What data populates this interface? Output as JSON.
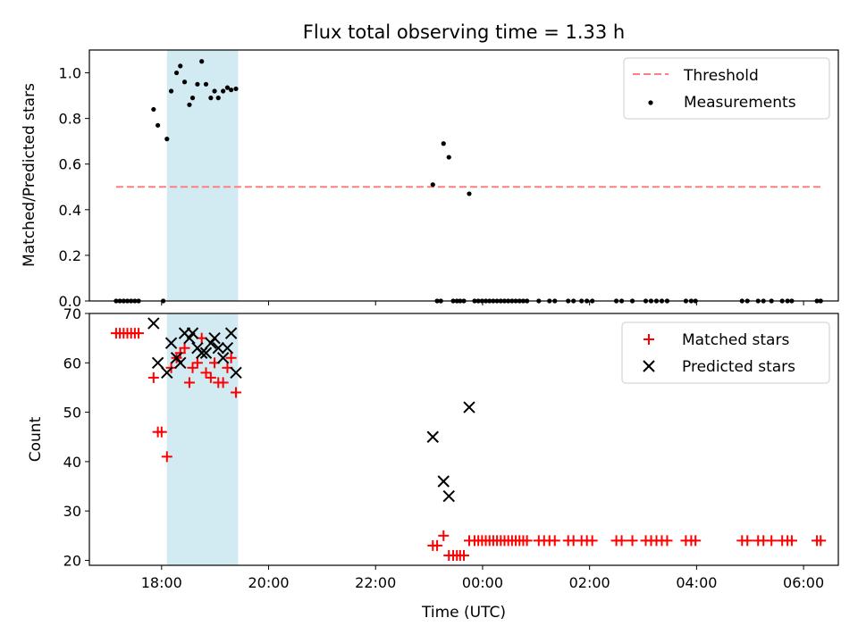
{
  "chart_data": {
    "title": "Flux total observing time = 1.33 h",
    "xlabel": "Time (UTC)",
    "x_unit": "hours since 17:00 UTC",
    "xlim": [
      -0.35,
      13.65
    ],
    "x_ticks": [
      {
        "value": 1,
        "label": "18:00"
      },
      {
        "value": 3,
        "label": "20:00"
      },
      {
        "value": 5,
        "label": "22:00"
      },
      {
        "value": 7,
        "label": "00:00"
      },
      {
        "value": 9,
        "label": "02:00"
      },
      {
        "value": 11,
        "label": "04:00"
      },
      {
        "value": 13,
        "label": "06:00"
      }
    ],
    "highlight_span": [
      1.1,
      2.43
    ],
    "highlight_color": "#add8e6",
    "panels": [
      {
        "id": "ratio",
        "type": "scatter",
        "ylabel": "Matched/Predicted stars",
        "ylim": [
          0,
          1.1
        ],
        "y_ticks": [
          0.0,
          0.2,
          0.4,
          0.6,
          0.8,
          1.0
        ],
        "threshold": {
          "name": "Threshold",
          "value": 0.5,
          "x_range": [
            0.15,
            13.35
          ],
          "color": "#ff7f7f"
        },
        "legend": [
          "Threshold",
          "Measurements"
        ],
        "series": [
          {
            "name": "Measurements",
            "color": "#000000",
            "points": [
              [
                0.15,
                0
              ],
              [
                0.22,
                0
              ],
              [
                0.29,
                0
              ],
              [
                0.36,
                0
              ],
              [
                0.43,
                0
              ],
              [
                0.5,
                0
              ],
              [
                0.57,
                0
              ],
              [
                1.03,
                0
              ],
              [
                0.85,
                0.84
              ],
              [
                0.93,
                0.77
              ],
              [
                1.1,
                0.71
              ],
              [
                1.18,
                0.92
              ],
              [
                1.28,
                1.0
              ],
              [
                1.35,
                1.03
              ],
              [
                1.43,
                0.96
              ],
              [
                1.52,
                0.86
              ],
              [
                1.58,
                0.89
              ],
              [
                1.67,
                0.95
              ],
              [
                1.75,
                1.05
              ],
              [
                1.83,
                0.95
              ],
              [
                1.92,
                0.89
              ],
              [
                1.99,
                0.92
              ],
              [
                2.06,
                0.89
              ],
              [
                2.15,
                0.92
              ],
              [
                2.23,
                0.935
              ],
              [
                2.3,
                0.925
              ],
              [
                2.39,
                0.93
              ],
              [
                6.07,
                0.51
              ],
              [
                6.27,
                0.69
              ],
              [
                6.37,
                0.63
              ],
              [
                6.75,
                0.47
              ],
              [
                6.15,
                0
              ],
              [
                6.22,
                0
              ],
              [
                6.45,
                0
              ],
              [
                6.52,
                0
              ],
              [
                6.58,
                0
              ],
              [
                6.65,
                0
              ],
              [
                6.85,
                0
              ],
              [
                6.92,
                0
              ],
              [
                6.99,
                0
              ],
              [
                7.06,
                0
              ],
              [
                7.13,
                0
              ],
              [
                7.2,
                0
              ],
              [
                7.27,
                0
              ],
              [
                7.34,
                0
              ],
              [
                7.41,
                0
              ],
              [
                7.48,
                0
              ],
              [
                7.55,
                0
              ],
              [
                7.62,
                0
              ],
              [
                7.69,
                0
              ],
              [
                7.76,
                0
              ],
              [
                7.83,
                0
              ],
              [
                8.05,
                0
              ],
              [
                8.25,
                0
              ],
              [
                8.35,
                0
              ],
              [
                8.6,
                0
              ],
              [
                8.7,
                0
              ],
              [
                8.85,
                0
              ],
              [
                8.95,
                0
              ],
              [
                9.05,
                0
              ],
              [
                9.5,
                0
              ],
              [
                9.6,
                0
              ],
              [
                9.8,
                0
              ],
              [
                10.05,
                0
              ],
              [
                10.15,
                0
              ],
              [
                10.25,
                0
              ],
              [
                10.35,
                0
              ],
              [
                10.45,
                0
              ],
              [
                10.8,
                0
              ],
              [
                10.9,
                0
              ],
              [
                10.98,
                0
              ],
              [
                11.85,
                0
              ],
              [
                11.95,
                0
              ],
              [
                12.15,
                0
              ],
              [
                12.25,
                0
              ],
              [
                12.4,
                0
              ],
              [
                12.6,
                0
              ],
              [
                12.7,
                0
              ],
              [
                12.78,
                0
              ],
              [
                13.25,
                0
              ],
              [
                13.32,
                0
              ]
            ]
          }
        ]
      },
      {
        "id": "counts",
        "type": "scatter",
        "ylabel": "Count",
        "ylim": [
          19,
          70
        ],
        "y_ticks": [
          20,
          30,
          40,
          50,
          60,
          70
        ],
        "legend": [
          "Matched stars",
          "Predicted stars"
        ],
        "series": [
          {
            "name": "Matched stars",
            "marker": "plus",
            "color": "#ff0000",
            "points": [
              [
                0.15,
                66
              ],
              [
                0.22,
                66
              ],
              [
                0.29,
                66
              ],
              [
                0.36,
                66
              ],
              [
                0.43,
                66
              ],
              [
                0.5,
                66
              ],
              [
                0.57,
                66
              ],
              [
                0.85,
                57
              ],
              [
                0.93,
                46
              ],
              [
                1.0,
                46
              ],
              [
                1.1,
                41
              ],
              [
                1.18,
                59
              ],
              [
                1.28,
                61
              ],
              [
                1.35,
                62
              ],
              [
                1.43,
                63
              ],
              [
                1.52,
                56
              ],
              [
                1.58,
                59
              ],
              [
                1.67,
                60
              ],
              [
                1.75,
                65
              ],
              [
                1.83,
                58
              ],
              [
                1.92,
                57
              ],
              [
                1.99,
                60
              ],
              [
                2.06,
                56
              ],
              [
                2.15,
                56
              ],
              [
                2.23,
                59
              ],
              [
                2.3,
                61
              ],
              [
                2.39,
                54
              ],
              [
                6.07,
                23
              ],
              [
                6.15,
                23
              ],
              [
                6.27,
                25
              ],
              [
                6.37,
                21
              ],
              [
                6.45,
                21
              ],
              [
                6.52,
                21
              ],
              [
                6.58,
                21
              ],
              [
                6.65,
                21
              ],
              [
                6.75,
                24
              ],
              [
                6.85,
                24
              ],
              [
                6.92,
                24
              ],
              [
                6.99,
                24
              ],
              [
                7.06,
                24
              ],
              [
                7.13,
                24
              ],
              [
                7.2,
                24
              ],
              [
                7.27,
                24
              ],
              [
                7.34,
                24
              ],
              [
                7.41,
                24
              ],
              [
                7.48,
                24
              ],
              [
                7.55,
                24
              ],
              [
                7.62,
                24
              ],
              [
                7.69,
                24
              ],
              [
                7.76,
                24
              ],
              [
                7.83,
                24
              ],
              [
                8.05,
                24
              ],
              [
                8.15,
                24
              ],
              [
                8.25,
                24
              ],
              [
                8.35,
                24
              ],
              [
                8.6,
                24
              ],
              [
                8.7,
                24
              ],
              [
                8.85,
                24
              ],
              [
                8.95,
                24
              ],
              [
                9.05,
                24
              ],
              [
                9.5,
                24
              ],
              [
                9.6,
                24
              ],
              [
                9.8,
                24
              ],
              [
                10.05,
                24
              ],
              [
                10.15,
                24
              ],
              [
                10.25,
                24
              ],
              [
                10.35,
                24
              ],
              [
                10.45,
                24
              ],
              [
                10.8,
                24
              ],
              [
                10.9,
                24
              ],
              [
                10.98,
                24
              ],
              [
                11.85,
                24
              ],
              [
                11.95,
                24
              ],
              [
                12.15,
                24
              ],
              [
                12.25,
                24
              ],
              [
                12.4,
                24
              ],
              [
                12.6,
                24
              ],
              [
                12.7,
                24
              ],
              [
                12.78,
                24
              ],
              [
                13.25,
                24
              ],
              [
                13.32,
                24
              ]
            ]
          },
          {
            "name": "Predicted stars",
            "marker": "x",
            "color": "#000000",
            "points": [
              [
                0.85,
                68
              ],
              [
                0.93,
                60
              ],
              [
                1.1,
                58
              ],
              [
                1.18,
                64
              ],
              [
                1.28,
                61
              ],
              [
                1.35,
                60
              ],
              [
                1.43,
                66
              ],
              [
                1.52,
                65
              ],
              [
                1.58,
                66
              ],
              [
                1.67,
                63
              ],
              [
                1.75,
                62
              ],
              [
                1.83,
                62
              ],
              [
                1.92,
                64
              ],
              [
                1.99,
                65
              ],
              [
                2.06,
                63
              ],
              [
                2.15,
                61
              ],
              [
                2.23,
                63
              ],
              [
                2.3,
                66
              ],
              [
                2.39,
                58
              ],
              [
                6.07,
                45
              ],
              [
                6.27,
                36
              ],
              [
                6.37,
                33
              ],
              [
                6.75,
                51
              ]
            ]
          }
        ]
      }
    ]
  }
}
